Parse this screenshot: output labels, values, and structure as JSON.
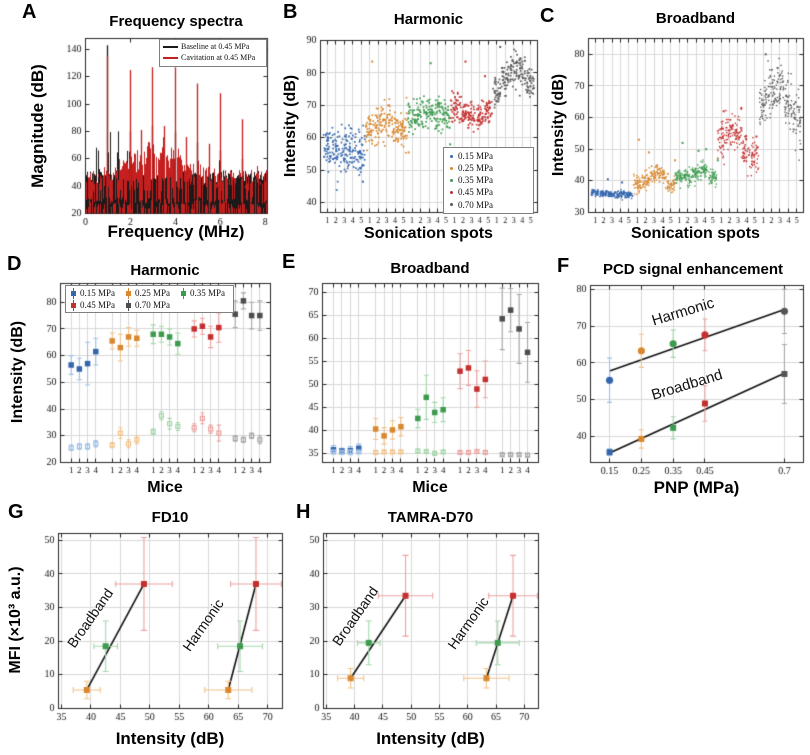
{
  "figure_title": "PCD cavitation monitoring figure",
  "background": "#ffffff",
  "palette": {
    "blue": "#3566ad",
    "orange": "#d9882f",
    "green": "#3d9b4e",
    "red": "#c43030",
    "gray": "#555555",
    "light_blue": "#9fc0e6",
    "light_orange": "#f2c28a",
    "light_green": "#a4d7ab",
    "light_red": "#eba3a0",
    "light_gray": "#aaaaaa"
  },
  "chart_data": [
    {
      "panel": "A",
      "letter": "A",
      "type": "spectra",
      "title": "Frequency spectra",
      "xlabel": "Frequency (MHz)",
      "ylabel": "Magnitude (dB)",
      "xlim": [
        0,
        8.1
      ],
      "ylim": [
        20,
        148
      ],
      "xticks": [
        0,
        2,
        4,
        6,
        8
      ],
      "yticks": [
        20,
        40,
        60,
        80,
        100,
        120,
        140
      ],
      "grid": false,
      "seed": 42,
      "series": [
        {
          "name": "Baseline at 0.45 MPa",
          "color": "#1a1a1a",
          "noise_top": [
            42,
            52
          ],
          "peak_freqs": [
            1,
            2,
            3,
            4,
            5,
            6,
            7
          ],
          "peak_mags": [
            143,
            80,
            84,
            80,
            72,
            66,
            60
          ]
        },
        {
          "name": "Cavitation at 0.45 MPa",
          "color": "#c51f1f",
          "noise_top": [
            40,
            52
          ],
          "hump": {
            "center": 3.2,
            "sigma": 1.55,
            "amp": 22
          },
          "peak_freqs": [
            1,
            2,
            2.5,
            3,
            3.5,
            4,
            4.5,
            5,
            5.5,
            6,
            7
          ],
          "peak_mags": [
            135,
            125,
            81,
            127,
            84,
            127,
            76,
            115,
            71,
            108,
            89
          ]
        }
      ],
      "legend": [
        {
          "label": "Baseline at 0.45 MPa",
          "color": "#1a1a1a"
        },
        {
          "label": "Cavitation at 0.45 MPa",
          "color": "#c51f1f"
        }
      ]
    },
    {
      "panel": "B",
      "letter": "B",
      "type": "cluster-scatter",
      "title": "Harmonic",
      "xlabel": "Sonication spots",
      "ylabel": "Intensity (dB)",
      "xlim": [
        -0.8,
        24.8
      ],
      "ylim": [
        37,
        90
      ],
      "yticks": [
        40,
        50,
        60,
        70,
        80,
        90
      ],
      "spot_labels": [
        "1",
        "2",
        "3",
        "4",
        "5"
      ],
      "seed": 11,
      "points_per_spot": 38,
      "dot": 1.7,
      "groups": [
        {
          "pressure": "0.15 MPa",
          "color": "#3566ad",
          "means": [
            57,
            56,
            55.5,
            56,
            54.5
          ],
          "sd": 3.2,
          "outliers": [
            [
              4.2,
              46.5
            ]
          ]
        },
        {
          "pressure": "0.25 MPa",
          "color": "#d9882f",
          "means": [
            63,
            64,
            65,
            63.5,
            62
          ],
          "sd": 3.0,
          "outliers": [
            [
              5.3,
              83.5
            ],
            [
              9.6,
              55.5
            ]
          ]
        },
        {
          "pressure": "0.35 MPa",
          "color": "#3d9b4e",
          "means": [
            66,
            67,
            67.5,
            68,
            66.5
          ],
          "sd": 2.6,
          "outliers": [
            [
              12.2,
              83
            ],
            [
              14.5,
              58
            ]
          ]
        },
        {
          "pressure": "0.45 MPa",
          "color": "#c43030",
          "means": [
            69.5,
            68.5,
            67,
            66.5,
            68
          ],
          "sd": 2.2,
          "outliers": [
            [
              16.3,
              83.5
            ],
            [
              18.6,
              79
            ]
          ]
        },
        {
          "pressure": "0.70 MPa",
          "color": "#5a5a5a",
          "means": [
            74,
            78.5,
            82,
            80.5,
            76.5
          ],
          "sd": 2.4,
          "outliers": [
            [
              20.4,
              88
            ]
          ]
        }
      ],
      "legend": [
        {
          "label": "0.15 MPa",
          "color": "#3566ad"
        },
        {
          "label": "0.25 MPa",
          "color": "#d9882f"
        },
        {
          "label": "0.35 MPa",
          "color": "#3d9b4e"
        },
        {
          "label": "0.45 MPa",
          "color": "#c43030"
        },
        {
          "label": "0.70 MPa",
          "color": "#5a5a5a"
        }
      ]
    },
    {
      "panel": "C",
      "letter": "C",
      "type": "cluster-scatter",
      "title": "Broadband",
      "xlabel": "Sonication spots",
      "ylabel": "Intensity (dB)",
      "xlim": [
        -0.8,
        24.8
      ],
      "ylim": [
        30,
        85
      ],
      "yticks": [
        30,
        40,
        50,
        60,
        70,
        80
      ],
      "spot_labels": [
        "1",
        "2",
        "3",
        "4",
        "5"
      ],
      "seed": 23,
      "points_per_spot": 45,
      "dot": 1.4,
      "groups": [
        {
          "pressure": "0.15 MPa",
          "color": "#3566ad",
          "means": [
            36.3,
            36,
            35.8,
            35.6,
            35.4
          ],
          "sd": 0.55,
          "outliers": [
            [
              1.5,
              40.5
            ],
            [
              3.2,
              39.5
            ]
          ]
        },
        {
          "pressure": "0.25 MPa",
          "color": "#d9882f",
          "means": [
            38.3,
            40.3,
            42.3,
            41.8,
            38.6
          ],
          "sd": 1.4,
          "outliers": [
            [
              5.2,
              53
            ],
            [
              6.4,
              49
            ],
            [
              9.5,
              46.5
            ]
          ]
        },
        {
          "pressure": "0.35 MPa",
          "color": "#3d9b4e",
          "means": [
            41,
            41.3,
            42.3,
            43.4,
            40.8
          ],
          "sd": 1.2,
          "outliers": [
            [
              10.4,
              52
            ],
            [
              12.3,
              49.5
            ],
            [
              13.2,
              50
            ],
            [
              14.6,
              46.5
            ]
          ]
        },
        {
          "pressure": "0.45 MPa",
          "color": "#c43030",
          "means": [
            53,
            55.5,
            55,
            49.5,
            48.3
          ],
          "sd": 2.6,
          "outliers": [
            [
              15.3,
              62
            ],
            [
              17.4,
              63
            ],
            [
              19.2,
              54
            ]
          ]
        },
        {
          "pressure": "0.70 MPa",
          "color": "#5a5a5a",
          "means": [
            62.5,
            68,
            70.5,
            64.5,
            59.5
          ],
          "sd": 3.8,
          "outliers": [
            [
              20.3,
              80
            ]
          ]
        }
      ],
      "legend": []
    },
    {
      "panel": "D",
      "letter": "D",
      "type": "errorbar-groups",
      "title": "Harmonic",
      "xlabel": "Mice",
      "ylabel": "Intensity (dB)",
      "xlim": [
        -1.3,
        24.3
      ],
      "ylim": [
        20,
        87
      ],
      "yticks": [
        20,
        30,
        40,
        50,
        60,
        70,
        80
      ],
      "mice_labels": [
        "1",
        "2",
        "3",
        "4"
      ],
      "groups": [
        {
          "pressure": "0.15 MPa",
          "color": "#3566ad",
          "light": "#9fc0e6",
          "mean": [
            56.5,
            55,
            57,
            61.5
          ],
          "err": [
            3.5,
            4,
            8,
            5
          ],
          "open_mean": [
            25.5,
            26,
            26,
            27
          ],
          "open_err": [
            1,
            1,
            1,
            1.2
          ]
        },
        {
          "pressure": "0.25 MPa",
          "color": "#d9882f",
          "light": "#f2c28a",
          "mean": [
            65.5,
            63,
            67,
            66.5
          ],
          "err": [
            3,
            5,
            3.5,
            3
          ],
          "open_mean": [
            26.5,
            31,
            27,
            28.5
          ],
          "open_err": [
            1,
            2,
            1.5,
            1.5
          ]
        },
        {
          "pressure": "0.35 MPa",
          "color": "#3d9b4e",
          "light": "#a4d7ab",
          "mean": [
            68,
            68,
            67,
            64.5
          ],
          "err": [
            3.5,
            3,
            3,
            4
          ],
          "open_mean": [
            31.5,
            37.5,
            34.5,
            33.5
          ],
          "open_err": [
            1,
            1.5,
            2,
            1.5
          ]
        },
        {
          "pressure": "0.45 MPa",
          "color": "#c43030",
          "light": "#eba3a0",
          "mean": [
            70,
            71,
            67,
            70.5
          ],
          "err": [
            3,
            3,
            4,
            5.5
          ],
          "open_mean": [
            33,
            36.5,
            32.5,
            31
          ],
          "open_err": [
            1.5,
            2,
            1.5,
            3
          ]
        },
        {
          "pressure": "0.70 MPa",
          "color": "#4d4d4d",
          "light": "#a8a8a8",
          "mean": [
            75.5,
            80.5,
            75,
            75
          ],
          "err": [
            5,
            3,
            5,
            5.5
          ],
          "open_mean": [
            29,
            28.5,
            30,
            28.5
          ],
          "open_err": [
            1,
            1,
            1,
            1.5
          ]
        }
      ],
      "legend": [
        {
          "label": "0.15 MPa",
          "color": "#3566ad"
        },
        {
          "label": "0.25 MPa",
          "color": "#d9882f"
        },
        {
          "label": "0.35 MPa",
          "color": "#3d9b4e"
        },
        {
          "label": "0.45 MPa",
          "color": "#c43030"
        },
        {
          "label": "0.70 MPa",
          "color": "#4d4d4d"
        }
      ]
    },
    {
      "panel": "E",
      "letter": "E",
      "type": "errorbar-groups",
      "title": "Broadband",
      "xlabel": "Mice",
      "ylabel": "",
      "xlim": [
        -1.3,
        24.3
      ],
      "ylim": [
        33,
        72
      ],
      "yticks": [
        35,
        40,
        45,
        50,
        55,
        60,
        65,
        70
      ],
      "mice_labels": [
        "1",
        "2",
        "3",
        "4"
      ],
      "groups": [
        {
          "pressure": "0.15 MPa",
          "color": "#3566ad",
          "light": "#9fc0e6",
          "mean": [
            35.8,
            35.5,
            35.6,
            36.1
          ],
          "err": [
            0.9,
            0.6,
            0.9,
            0.9
          ],
          "open_mean": [
            35.3,
            35.2,
            35.3,
            35.3
          ],
          "open_err": [
            0.3,
            0.3,
            0.3,
            0.3
          ]
        },
        {
          "pressure": "0.25 MPa",
          "color": "#d9882f",
          "light": "#f2c28a",
          "mean": [
            40.3,
            38.8,
            40.1,
            40.8
          ],
          "err": [
            2.3,
            1.8,
            2,
            2
          ],
          "open_mean": [
            35.2,
            35.3,
            35.3,
            35.3
          ],
          "open_err": [
            0.3,
            0.3,
            0.3,
            0.3
          ]
        },
        {
          "pressure": "0.35 MPa",
          "color": "#3d9b4e",
          "light": "#a4d7ab",
          "mean": [
            42.6,
            47.2,
            43.9,
            44.5
          ],
          "err": [
            2,
            4.8,
            2.2,
            2.6
          ],
          "open_mean": [
            35.5,
            35.4,
            35,
            35.3
          ],
          "open_err": [
            0.4,
            0.3,
            0.3,
            0.3
          ]
        },
        {
          "pressure": "0.45 MPa",
          "color": "#c43030",
          "light": "#eba3a0",
          "mean": [
            52.9,
            53.6,
            49,
            51.1
          ],
          "err": [
            3.8,
            3.8,
            4,
            4
          ],
          "open_mean": [
            35.2,
            35.2,
            35.4,
            35.2
          ],
          "open_err": [
            0.3,
            0.3,
            0.4,
            0.3
          ]
        },
        {
          "pressure": "0.70 MPa",
          "color": "#4d4d4d",
          "light": "#a8a8a8",
          "mean": [
            64.3,
            66.2,
            62.1,
            57
          ],
          "err": [
            6.7,
            4.7,
            7.5,
            6.5
          ],
          "open_mean": [
            34.7,
            34.7,
            34.7,
            34.6
          ],
          "open_err": [
            0.3,
            0.3,
            0.3,
            0.3
          ]
        }
      ],
      "legend": []
    },
    {
      "panel": "F",
      "letter": "F",
      "type": "fit-errorbar",
      "title": "PCD signal enhancement",
      "xlabel": "PNP (MPa)",
      "ylabel": "",
      "xlim": [
        0.09,
        0.76
      ],
      "ylim": [
        33,
        81
      ],
      "xticks": [
        0.15,
        0.25,
        0.35,
        0.45,
        0.7
      ],
      "xtick_labels": [
        "0.15",
        "0.25",
        "0.35",
        "0.45",
        "0.7"
      ],
      "yticks": [
        40,
        50,
        60,
        70,
        80
      ],
      "x": [
        0.15,
        0.25,
        0.35,
        0.45,
        0.7
      ],
      "point_colors": [
        "#3566ad",
        "#d9882f",
        "#3d9b4e",
        "#c43030",
        "#555555"
      ],
      "point_lights": [
        "#9fc0e6",
        "#f2c28a",
        "#a4d7ab",
        "#eba3a0",
        "#a8a8a8"
      ],
      "series": [
        {
          "name": "Harmonic",
          "marker": "circle",
          "y": [
            55.3,
            63.3,
            65.2,
            67.6,
            74
          ],
          "err": [
            6,
            4.5,
            3.7,
            4.3,
            6
          ],
          "fit": [
            [
              0.15,
              57.8
            ],
            [
              0.7,
              74.5
            ]
          ]
        },
        {
          "name": "Broadband",
          "marker": "square",
          "y": [
            35.8,
            39.4,
            42.4,
            49,
            57
          ],
          "err": [
            0.9,
            2.5,
            3,
            4.8,
            8
          ],
          "fit": [
            [
              0.15,
              35.6
            ],
            [
              0.7,
              57.2
            ]
          ]
        }
      ],
      "annotations": [
        {
          "text": "Harmonic"
        },
        {
          "text": "Broadband"
        }
      ]
    },
    {
      "panel": "G",
      "letter": "G",
      "type": "xy-errorbar",
      "title": "FD10",
      "xlabel": "Intensity (dB)",
      "ylabel": "MFI (×10³ a.u.)",
      "xlim": [
        34.5,
        72.5
      ],
      "ylim": [
        0,
        52
      ],
      "xticks": [
        35,
        40,
        45,
        50,
        55,
        60,
        65,
        70
      ],
      "yticks": [
        0,
        10,
        20,
        30,
        40,
        50
      ],
      "point_colors": [
        "#d9882f",
        "#3d9b4e",
        "#c43030"
      ],
      "point_lights": [
        "#f2c28a",
        "#a4d7ab",
        "#eba3a0"
      ],
      "series": [
        {
          "name": "Broadband",
          "points": [
            [
              39.3,
              5.5,
              2.3,
              2.6
            ],
            [
              42.5,
              18.5,
              2.0,
              7.5
            ],
            [
              49,
              37,
              4.8,
              13.8
            ]
          ]
        },
        {
          "name": "Harmonic",
          "points": [
            [
              63.3,
              5.5,
              4.0,
              2.6
            ],
            [
              65.3,
              18.5,
              3.8,
              7.5
            ],
            [
              68,
              37,
              4.3,
              13.8
            ]
          ]
        }
      ],
      "annotations": [
        {
          "text": "Broadband"
        },
        {
          "text": "Harmonic"
        }
      ]
    },
    {
      "panel": "H",
      "letter": "H",
      "type": "xy-errorbar",
      "title": "TAMRA-D70",
      "xlabel": "Intensity (dB)",
      "ylabel": "",
      "xlim": [
        34.5,
        72.5
      ],
      "ylim": [
        0,
        52
      ],
      "xticks": [
        35,
        40,
        45,
        50,
        55,
        60,
        65,
        70
      ],
      "yticks": [
        0,
        10,
        20,
        30,
        40,
        50
      ],
      "point_colors": [
        "#d9882f",
        "#3d9b4e",
        "#c43030"
      ],
      "point_lights": [
        "#f2c28a",
        "#a4d7ab",
        "#eba3a0"
      ],
      "series": [
        {
          "name": "Broadband",
          "points": [
            [
              39.3,
              9,
              2.3,
              2.9
            ],
            [
              42.5,
              19.5,
              2.0,
              6.5
            ],
            [
              49,
              33.5,
              4.8,
              12
            ]
          ]
        },
        {
          "name": "Harmonic",
          "points": [
            [
              63.3,
              9,
              4.0,
              2.9
            ],
            [
              65.3,
              19.5,
              3.8,
              6.5
            ],
            [
              68,
              33.5,
              4.3,
              12
            ]
          ]
        }
      ],
      "annotations": [
        {
          "text": "Broadband"
        },
        {
          "text": "Harmonic"
        }
      ]
    }
  ]
}
